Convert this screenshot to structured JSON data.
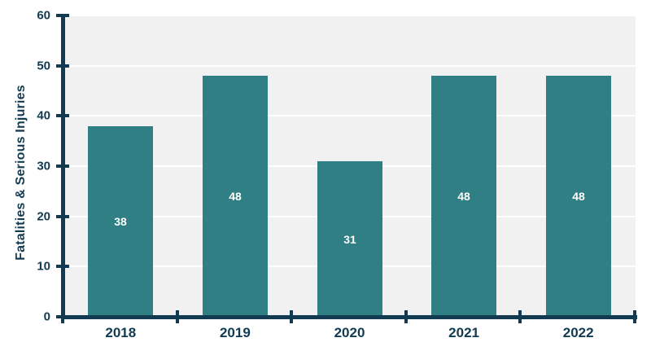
{
  "chart_data": {
    "type": "bar",
    "categories": [
      "2018",
      "2019",
      "2020",
      "2021",
      "2022"
    ],
    "values": [
      38,
      48,
      31,
      48,
      48
    ],
    "bar_labels": [
      "38",
      "48",
      "31",
      "48",
      "48"
    ],
    "title": "",
    "xlabel": "",
    "ylabel": "Fatalities & Serious Injuries",
    "ylim": [
      0,
      60
    ],
    "yticks": [
      0,
      10,
      20,
      30,
      40,
      50,
      60
    ],
    "ytick_labels": [
      "0",
      "10",
      "20",
      "30",
      "40",
      "50",
      "60"
    ],
    "grid": "horizontal",
    "legend_position": "none"
  },
  "colors": {
    "bar": "#2F7F84",
    "axis": "#123B52",
    "text": "#123B52",
    "bar_label_text": "#FFFFFF",
    "plot_background": "#F1F1F1",
    "gridline": "#FFFFFF",
    "page_background": "#FFFFFF"
  }
}
